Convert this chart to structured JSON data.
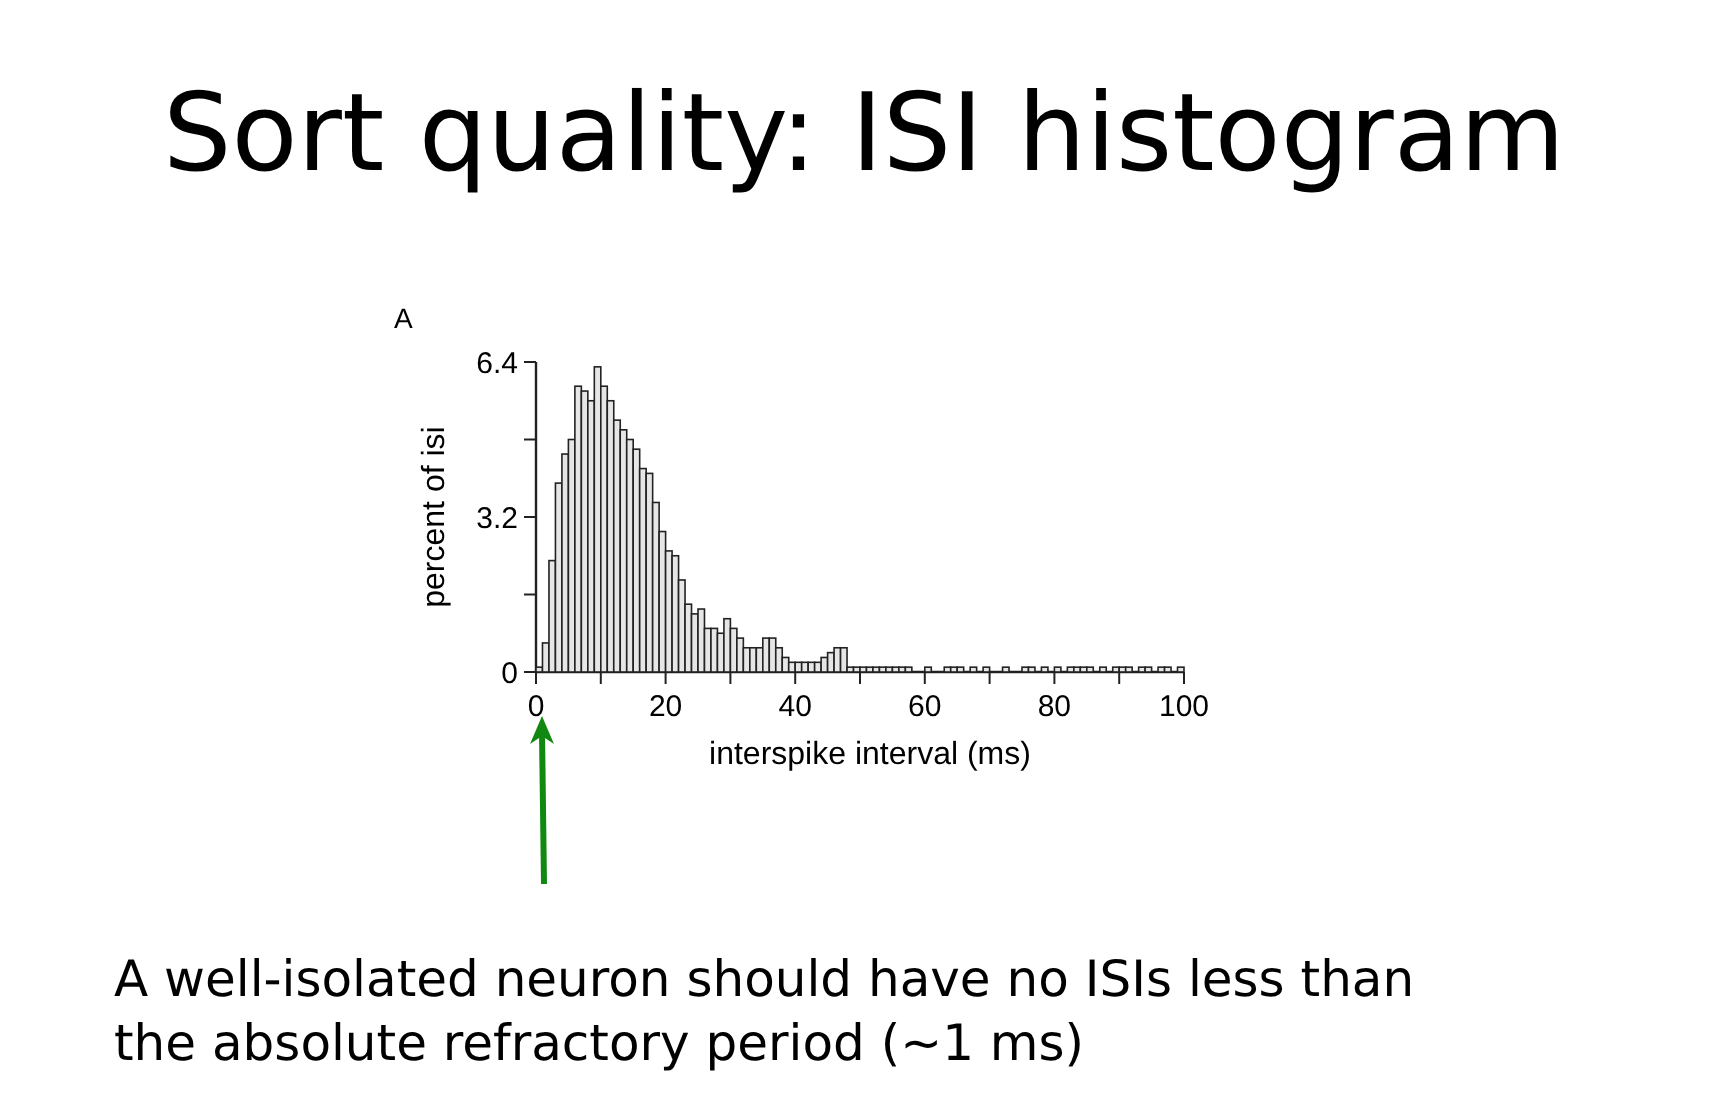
{
  "chart_data": {
    "type": "histogram",
    "title": "Sort quality: ISI histogram",
    "xlabel": "interspike interval (ms)",
    "ylabel": "percent of isi",
    "annotations": [
      "A",
      "A well-isolated neuron should have no ISIs less than the absolute refractory period (~1 ms)"
    ],
    "bins": [
      0,
      1,
      2,
      3,
      4,
      5,
      6,
      7,
      8,
      9,
      10,
      11,
      12,
      13,
      14,
      15,
      16,
      17,
      18,
      19,
      20,
      21,
      22,
      23,
      24,
      25,
      26,
      27,
      28,
      29,
      30,
      31,
      32,
      33,
      34,
      35,
      36,
      37,
      38,
      39,
      40,
      41,
      42,
      43,
      44,
      45,
      46,
      47,
      48,
      49,
      50,
      51,
      52,
      53,
      54,
      55,
      56,
      57,
      58,
      59,
      60,
      61,
      62,
      63,
      64,
      65,
      66,
      67,
      68,
      69,
      70,
      71,
      72,
      73,
      74,
      75,
      76,
      77,
      78,
      79,
      80,
      81,
      82,
      83,
      84,
      85,
      86,
      87,
      88,
      89,
      90,
      91,
      92,
      93,
      94,
      95,
      96,
      97,
      98,
      99,
      100
    ],
    "values": [
      0.1,
      0.6,
      2.3,
      3.9,
      4.5,
      4.8,
      5.9,
      5.8,
      5.6,
      6.3,
      5.9,
      5.6,
      5.2,
      5.0,
      4.8,
      4.6,
      4.2,
      4.1,
      3.5,
      2.9,
      2.5,
      2.4,
      1.9,
      1.4,
      1.2,
      1.3,
      0.9,
      0.9,
      0.8,
      1.1,
      0.9,
      0.7,
      0.5,
      0.5,
      0.5,
      0.7,
      0.7,
      0.5,
      0.3,
      0.2,
      0.2,
      0.2,
      0.2,
      0.2,
      0.3,
      0.4,
      0.5,
      0.5,
      0.1,
      0.1,
      0.1,
      0.1,
      0.1,
      0.1,
      0.1,
      0.1,
      0.1,
      0.1,
      0,
      0,
      0.1,
      0,
      0,
      0.1,
      0.1,
      0.1,
      0,
      0.1,
      0,
      0.1,
      0,
      0,
      0.1,
      0,
      0,
      0.1,
      0.1,
      0,
      0.1,
      0,
      0.1,
      0,
      0.1,
      0.1,
      0.1,
      0.1,
      0,
      0.1,
      0,
      0.1,
      0.1,
      0.1,
      0,
      0.1,
      0.1,
      0,
      0.1,
      0.1,
      0,
      0.1
    ],
    "color": "#e6e6e6",
    "xlim": [
      0,
      100
    ],
    "xticks": [
      0,
      {
        "value": 10,
        "label": null
      },
      20,
      {
        "value": 30,
        "label": null
      },
      40,
      {
        "value": 50,
        "label": null
      },
      60,
      {
        "value": 70,
        "label": null
      },
      80,
      {
        "value": 90,
        "label": null
      },
      100
    ],
    "ylim": [
      0,
      6.4
    ],
    "yticks": [
      0,
      {
        "value": 1.6,
        "label": null
      },
      3.2,
      {
        "value": 4.8,
        "label": null
      },
      6.4
    ]
  }
}
